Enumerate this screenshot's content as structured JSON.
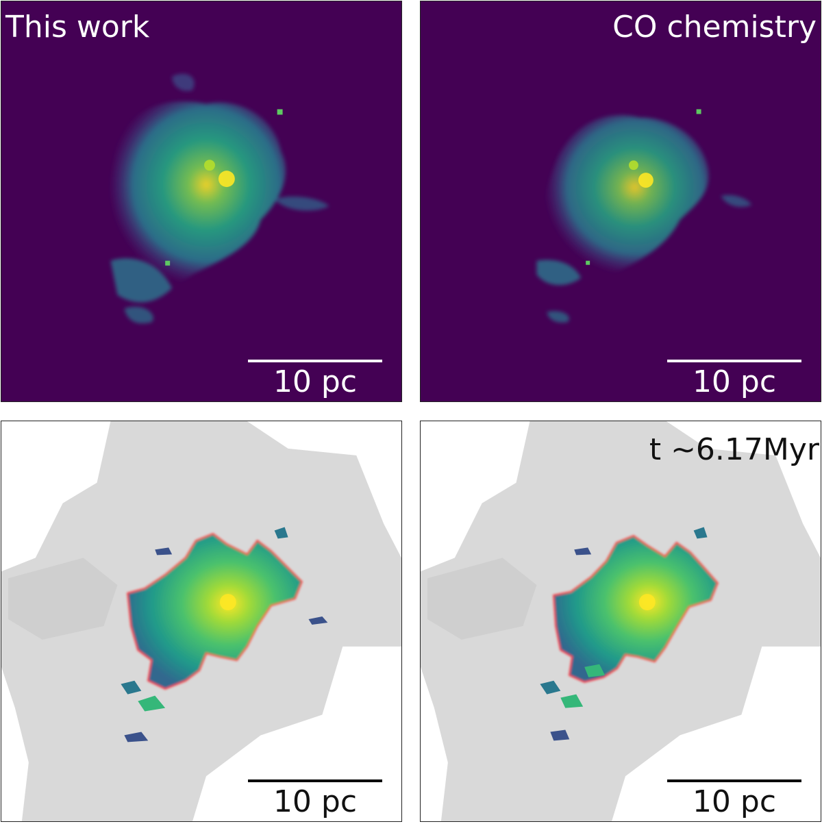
{
  "panels": {
    "top_left": {
      "title": "This work",
      "scale": "10 pc"
    },
    "top_right": {
      "title": "CO chemistry",
      "scale": "10 pc"
    },
    "bottom_left": {
      "scale": "10 pc"
    },
    "bottom_right": {
      "annotation": "t $\\sim$6.17Myr",
      "annotation_display": "t  ~6.17Myr",
      "scale": "10 pc"
    }
  },
  "colors": {
    "background_viridis_low": "#440154",
    "viridis_mid": "#21918c",
    "viridis_high": "#fde725",
    "contour": "#ff1a1a",
    "grey_gas": "#d9d9d9"
  }
}
